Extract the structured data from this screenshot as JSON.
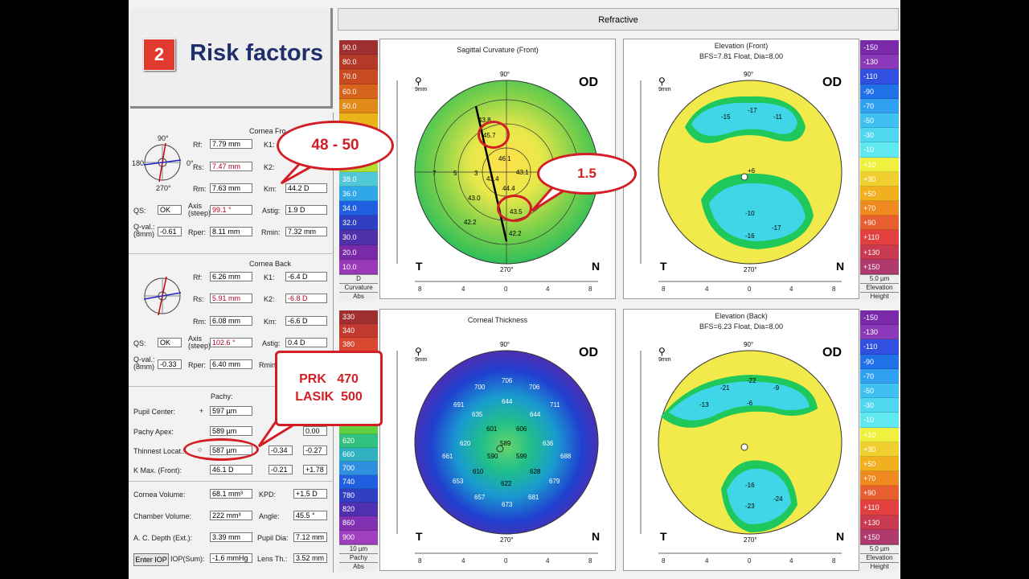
{
  "slide": {
    "number": "2",
    "title": "Risk factors"
  },
  "topbar": {
    "title": "Refractive"
  },
  "cornea_front": {
    "header": "Cornea Fro",
    "rf_label": "Rf:",
    "rf": "7.79 mm",
    "rs_label": "Rs:",
    "rs": "7.47 mm",
    "rm_label": "Rm:",
    "rm": "7.63 mm",
    "k1_label": "K1:",
    "k2_label": "K2:",
    "km_label": "Km:",
    "km": "44.2 D",
    "qs_label": "QS:",
    "qs": "OK",
    "axis_label": "Axis (steep)",
    "axis": "99.1 °",
    "astig_label": "Astig:",
    "astig": "1.9 D",
    "qval_label": "Q-val.: (8mm)",
    "qval": "-0.61",
    "rper_label": "Rper:",
    "rper": "8.11 mm",
    "rmin_label": "Rmin:",
    "rmin": "7.32 mm",
    "axis90": "90°",
    "axis0": "0°",
    "axis180": "180",
    "axis270": "270°"
  },
  "cornea_back": {
    "header": "Cornea Back",
    "rf": "6.26 mm",
    "rs": "5.91 mm",
    "rm": "6.08 mm",
    "k1": "-6.4 D",
    "k2": "-6.8 D",
    "km": "-6.6 D",
    "qs": "OK",
    "axis": "102.6 °",
    "astig": "0.4 D",
    "qval": "-0.33",
    "rper": "6.40 mm",
    "rmin_label": "Rmin"
  },
  "pachy": {
    "header": "Pachy:",
    "pupil_center_label": "Pupil Center:",
    "pupil_center": "597 µm",
    "apex_label": "Pachy Apex:",
    "apex": "589 µm",
    "apex_y": "0.00",
    "thinnest_label": "Thinnest Locat.:",
    "thinnest": "587 µm",
    "thinnest_x": "-0.34",
    "thinnest_y": "-0.27",
    "kmax_label": "K Max. (Front):",
    "kmax": "46.1 D",
    "kmax_x": "-0.21",
    "kmax_y": "+1.78"
  },
  "volumes": {
    "cornea_vol_label": "Cornea Volume:",
    "cornea_vol": "68.1 mm³",
    "kpd_label": "KPD:",
    "kpd": "+1.5 D",
    "chamber_vol_label": "Chamber Volume:",
    "chamber_vol": "222 mm³",
    "angle_label": "Angle:",
    "angle": "45.5 °",
    "acd_label": "A. C. Depth (Ext.):",
    "acd": "3.39 mm",
    "pupil_dia_label": "Pupil Dia:",
    "pupil_dia": "7.12 mm",
    "enter_iop": "Enter IOP",
    "iop_label": "IOP(Sum):",
    "iop": "-1.6 mmHg",
    "lens_label": "Lens Th.:",
    "lens": "3.52 mm"
  },
  "maps": {
    "sagittal": {
      "title": "Sagittal Curvature (Front)",
      "subtitle": ""
    },
    "elev_front": {
      "title": "Elevation (Front)",
      "subtitle": "BFS=7.81 Float, Dia=8.00"
    },
    "thickness": {
      "title": "Corneal Thickness",
      "subtitle": ""
    },
    "elev_back": {
      "title": "Elevation (Back)",
      "subtitle": "BFS=6.23 Float, Dia=8.00"
    },
    "od": "OD",
    "t": "T",
    "n": "N",
    "deg90": "90°",
    "deg270": "270°",
    "mm9": "9mm"
  },
  "scales": {
    "curvature": [
      "90.0",
      "80.0",
      "70.0",
      "60.0",
      "50.0",
      "",
      "",
      "",
      "",
      "38.0",
      "36.0",
      "34.0",
      "32.0",
      "30.0",
      "20.0",
      "10.0"
    ],
    "curvature_foot": [
      "D",
      "Curvature",
      "Abs"
    ],
    "thickness": [
      "330",
      "340",
      "380",
      "",
      "",
      "",
      "",
      "",
      "",
      "620",
      "660",
      "700",
      "740",
      "780",
      "820",
      "860",
      "900"
    ],
    "thickness_foot": [
      "10 µm",
      "Pachy",
      "Abs"
    ],
    "elevation": [
      "-150",
      "-130",
      "-110",
      "-90",
      "-70",
      "-50",
      "-30",
      "-10",
      "+10",
      "+30",
      "+50",
      "+70",
      "+90",
      "+110",
      "+130",
      "+150"
    ],
    "elevation_foot": [
      "5.0 µm",
      "Elevation",
      "Height"
    ]
  },
  "callouts": {
    "kmax": "48 - 50",
    "diff": "1.5",
    "pachy_line1": "PRK   470",
    "pachy_line2": "LASIK  500"
  }
}
